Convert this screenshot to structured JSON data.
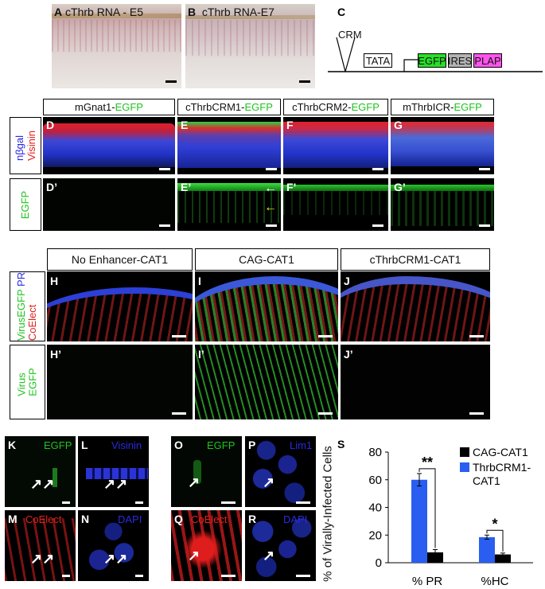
{
  "row1": {
    "A_label": "A",
    "A_title": "cThrb RNA - E5",
    "B_label": "B",
    "B_title": "cThrb RNA-E7",
    "C_label": "C",
    "construct": {
      "crm": "CRM",
      "tata": "TATA",
      "egfp": "EGFP",
      "ires": "IRES",
      "plap": "PLAP"
    }
  },
  "row2": {
    "headers": [
      {
        "prefix": "mGnat1-",
        "suffix": "EGFP"
      },
      {
        "prefix": "cThrbCRM1-",
        "suffix": "EGFP"
      },
      {
        "prefix": "cThrbCRM2-",
        "suffix": "EGFP"
      },
      {
        "prefix": "mThrbICR-",
        "suffix": "EGFP"
      }
    ],
    "side_top": {
      "a": "nβgal",
      "b": "Visinin"
    },
    "side_bottom": "EGFP",
    "labels_top": [
      "D",
      "E",
      "F",
      "G"
    ],
    "labels_bottom": [
      "D’",
      "E’",
      "F’",
      "G’"
    ]
  },
  "row3": {
    "headers": [
      "No Enhancer-CAT1",
      "CAG-CAT1",
      "cThrbCRM1-CAT1"
    ],
    "side_top": {
      "a": "VirusEGFP",
      "b": "PR",
      "c": "CoElect"
    },
    "side_bottom": {
      "a": "Virus",
      "b": "EGFP"
    },
    "labels_top": [
      "H",
      "I",
      "J"
    ],
    "labels_bottom": [
      "H’",
      "I’",
      "J’"
    ]
  },
  "row4": {
    "K": {
      "label": "K",
      "text": "EGFP"
    },
    "L": {
      "label": "L",
      "text": "Visinin"
    },
    "M": {
      "label": "M",
      "text": "CoElect"
    },
    "N": {
      "label": "N",
      "text": "DAPI"
    },
    "O": {
      "label": "O",
      "text": "EGFP"
    },
    "P": {
      "label": "P",
      "text": "Lim1"
    },
    "Q": {
      "label": "Q",
      "text": "CoElect"
    },
    "R": {
      "label": "R",
      "text": "DAPI"
    },
    "S": {
      "label": "S"
    }
  },
  "chart_data": {
    "type": "bar",
    "ylabel": "% of Virally-Infected Cells",
    "ylim": [
      0,
      80
    ],
    "yticks": [
      "0",
      "20",
      "40",
      "60",
      "80"
    ],
    "categories": [
      "% PR",
      "%HC"
    ],
    "series": [
      {
        "name": "ThrbCRM1-CAT1",
        "values": [
          60,
          18.5
        ],
        "errors": [
          4.5,
          1.5
        ],
        "color": "#2a5ef0"
      },
      {
        "name": "CAG-CAT1",
        "values": [
          7.5,
          6
        ],
        "errors": [
          2,
          1
        ],
        "color": "#000000"
      }
    ],
    "legend": [
      {
        "text": "CAG-CAT1",
        "color": "#000000"
      },
      {
        "text": "ThrbCRM1-",
        "text2": "CAT1",
        "color": "#2a5ef0"
      }
    ],
    "significance": [
      "**",
      "*"
    ],
    "legend_position": "top-right"
  }
}
